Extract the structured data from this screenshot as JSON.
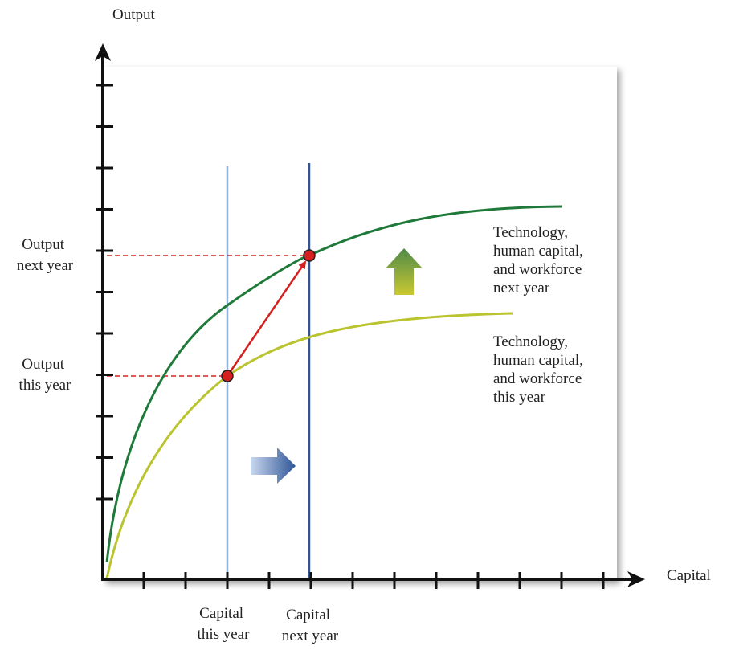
{
  "labels": {
    "y_axis": "Output",
    "x_axis": "Capital",
    "output_next_year": [
      "Output",
      "next year"
    ],
    "output_this_year": [
      "Output",
      "this year"
    ],
    "capital_this_year": [
      "Capital",
      "this year"
    ],
    "capital_next_year": [
      "Capital",
      "next year"
    ],
    "curve_next_year": [
      "Technology,",
      "human capital,",
      "and workforce",
      "next year"
    ],
    "curve_this_year": [
      "Technology,",
      "human capital,",
      "and workforce",
      "this year"
    ]
  },
  "colors": {
    "axis": "#111111",
    "curve_next_year": "#1f7a3a",
    "curve_this_year": "#b9c42e",
    "line_capital_this_year": "#8fb1e0",
    "line_capital_next_year": "#2f5597",
    "movement_arrow": "#d62020",
    "guide_dashes": "#d62020",
    "point_fill": "#d62020",
    "shift_arrow_up_top": "#4f8a48",
    "shift_arrow_up_bottom": "#c9c832",
    "shift_arrow_right_left": "#c9d8ee",
    "shift_arrow_right_right": "#2f5597"
  },
  "icons": {
    "shift_up": "arrow-up-icon",
    "shift_right": "arrow-right-icon"
  }
}
